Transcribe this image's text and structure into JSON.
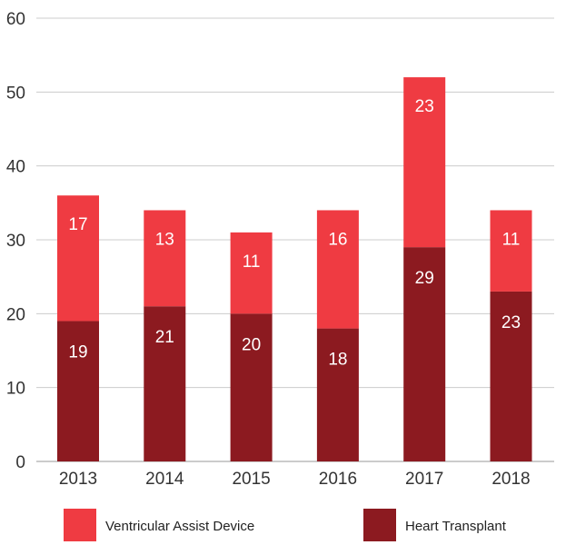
{
  "chart_data": {
    "type": "bar",
    "stacked": true,
    "categories": [
      "2013",
      "2014",
      "2015",
      "2016",
      "2017",
      "2018"
    ],
    "series": [
      {
        "name": "Heart Transplant",
        "values": [
          19,
          21,
          20,
          18,
          29,
          23
        ],
        "color": "#8c1a20"
      },
      {
        "name": "Ventricular Assist Device",
        "values": [
          17,
          13,
          11,
          16,
          23,
          11
        ],
        "color": "#ef3b42"
      }
    ],
    "ylim": [
      0,
      60
    ],
    "yticks": [
      0,
      10,
      20,
      30,
      40,
      50,
      60
    ],
    "grid": true,
    "legend": "bottom"
  }
}
